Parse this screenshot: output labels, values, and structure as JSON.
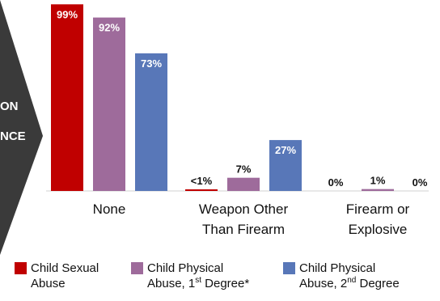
{
  "side_banner": {
    "lines": [
      "ON",
      "NCE"
    ],
    "color": "#3a3a3a"
  },
  "chart_data": {
    "type": "bar",
    "categories": [
      [
        "None"
      ],
      [
        "Weapon Other",
        "Than Firearm"
      ],
      [
        "Firearm or",
        "Explosive"
      ]
    ],
    "ylim": [
      0,
      100
    ],
    "series": [
      {
        "name": "Child Sexual Abuse",
        "color": "#c00000",
        "values": [
          99,
          0.5,
          0
        ],
        "labels": [
          "99%",
          "<1%",
          "0%"
        ]
      },
      {
        "name": "Child Physical Abuse, 1st Degree*",
        "color": "#9e6b9b",
        "values": [
          92,
          7,
          1
        ],
        "labels": [
          "92%",
          "7%",
          "1%"
        ]
      },
      {
        "name": "Child Physical Abuse, 2nd Degree",
        "color": "#5877b8",
        "values": [
          73,
          27,
          0
        ],
        "labels": [
          "73%",
          "27%",
          "0%"
        ]
      }
    ]
  },
  "legend": [
    {
      "line1": "Child Sexual",
      "line2": "Abuse",
      "sup": "",
      "tail": "",
      "color": "#c00000"
    },
    {
      "line1": "Child Physical",
      "line2": "Abuse, 1",
      "sup": "st",
      "tail": " Degree*",
      "color": "#9e6b9b"
    },
    {
      "line1": "Child Physical",
      "line2": "Abuse, 2",
      "sup": "nd",
      "tail": " Degree",
      "color": "#5877b8"
    }
  ]
}
